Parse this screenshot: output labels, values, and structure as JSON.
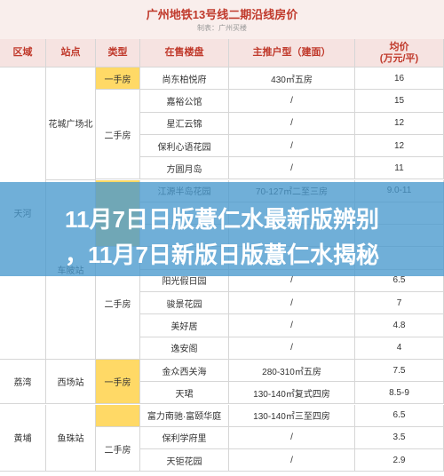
{
  "header": {
    "title": "广州地铁13号线二期沿线房价",
    "subtitle": "制表：广州买楼"
  },
  "table": {
    "columns": [
      "区域",
      "站点",
      "类型",
      "在售楼盘",
      "主推户型（建面）",
      "均价\n(万元/平)"
    ],
    "districts": [
      {
        "name": "天河",
        "stations": [
          {
            "name": "花城广场北",
            "types": [
              {
                "name": "一手房",
                "color": "#ffd966",
                "estates": [
                  {
                    "name": "尚东柏悦府",
                    "layout": "430㎡五房",
                    "price": "16"
                  }
                ]
              },
              {
                "name": "二手房",
                "color": "#ffffff",
                "estates": [
                  {
                    "name": "嘉裕公馆",
                    "layout": "/",
                    "price": "15"
                  },
                  {
                    "name": "星汇云锦",
                    "layout": "/",
                    "price": "12"
                  },
                  {
                    "name": "保利心语花园",
                    "layout": "/",
                    "price": "12"
                  },
                  {
                    "name": "方圆月岛",
                    "layout": "/",
                    "price": "11"
                  }
                ]
              }
            ]
          },
          {
            "name": "车陂站",
            "types": [
              {
                "name": null,
                "color": "#ffd966",
                "estates": [
                  {
                    "name": "江源半岛花园",
                    "layout": "70-127㎡二至三房",
                    "price": "9.0-11"
                  },
                  null,
                  null
                ]
              },
              {
                "name": "二手房",
                "color": "#ffffff",
                "estates": [
                  null,
                  {
                    "name": "阳光假日园",
                    "layout": "/",
                    "price": "6.5"
                  },
                  {
                    "name": "骏景花园",
                    "layout": "/",
                    "price": "7"
                  },
                  {
                    "name": "美好居",
                    "layout": "/",
                    "price": "4.8"
                  },
                  {
                    "name": "逸安阁",
                    "layout": "/",
                    "price": "4"
                  }
                ]
              }
            ]
          }
        ]
      },
      {
        "name": "荔湾",
        "stations": [
          {
            "name": "西场站",
            "types": [
              {
                "name": "一手房",
                "color": "#ffd966",
                "estates": [
                  {
                    "name": "金众西关海",
                    "layout": "280-310㎡五房",
                    "price": "7.5"
                  },
                  {
                    "name": "天珺",
                    "layout": "130-140㎡复式四房",
                    "price": "8.5-9"
                  }
                ]
              }
            ]
          }
        ]
      },
      {
        "name": "黄埔",
        "stations": [
          {
            "name": "鱼珠站",
            "types": [
              {
                "name": null,
                "color": "#ffd966",
                "estates": [
                  {
                    "name": "富力南驰·富颐华庭",
                    "layout": "130-140㎡三至四房",
                    "price": "6.5"
                  }
                ]
              },
              {
                "name": "二手房",
                "color": "#ffffff",
                "estates": [
                  {
                    "name": "保利学府里",
                    "layout": "/",
                    "price": "3.5"
                  },
                  {
                    "name": "天钜花园",
                    "layout": "/",
                    "price": "2.9"
                  }
                ]
              }
            ]
          }
        ]
      }
    ]
  },
  "banner": {
    "lines": [
      "11月7日日版薏仁水最新版辨别",
      "，11月7日新版日版薏仁水揭秘"
    ]
  }
}
